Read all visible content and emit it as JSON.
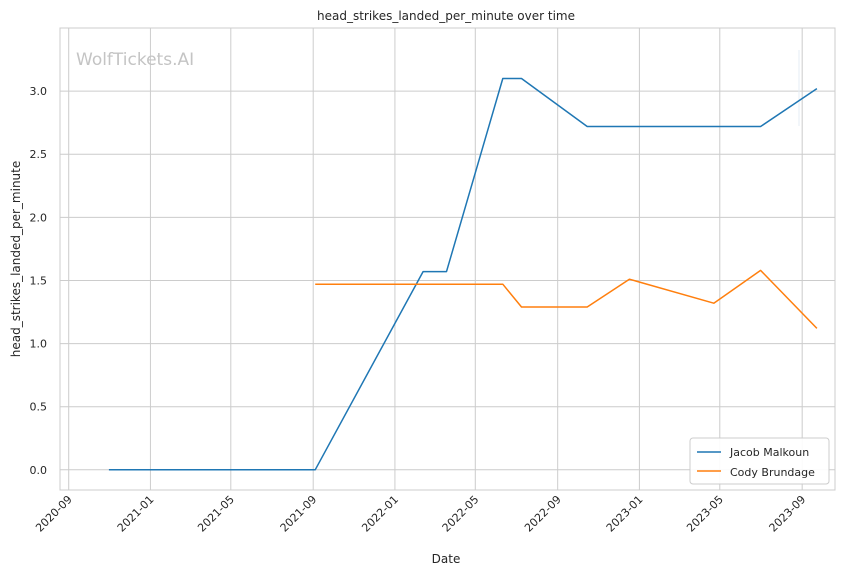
{
  "watermark": "WolfTickets.AI",
  "chart_data": {
    "type": "line",
    "title": "head_strikes_landed_per_minute over time",
    "xlabel": "Date",
    "ylabel": "head_strikes_landed_per_minute",
    "x_ticks": [
      "2020-09",
      "2021-01",
      "2021-05",
      "2021-09",
      "2022-01",
      "2022-05",
      "2022-09",
      "2023-01",
      "2023-05",
      "2023-09"
    ],
    "y_ticks": [
      "0.0",
      "0.5",
      "1.0",
      "1.5",
      "2.0",
      "2.5",
      "3.0"
    ],
    "xlim": [
      "2020-08-19",
      "2023-10-20"
    ],
    "ylim": [
      -0.16,
      3.5
    ],
    "grid": true,
    "legend_position": "lower-right",
    "series": [
      {
        "name": "Jacob Malkoun",
        "color": "#1f77b4",
        "points": [
          [
            "2020-10-31",
            0.0
          ],
          [
            "2021-09-04",
            0.0
          ],
          [
            "2022-02-12",
            1.57
          ],
          [
            "2022-03-19",
            1.57
          ],
          [
            "2022-06-11",
            3.1
          ],
          [
            "2022-07-09",
            3.1
          ],
          [
            "2022-10-15",
            2.72
          ],
          [
            "2023-07-01",
            2.72
          ],
          [
            "2023-09-23",
            3.02
          ]
        ]
      },
      {
        "name": "Cody Brundage",
        "color": "#ff7f0e",
        "points": [
          [
            "2021-09-04",
            1.47
          ],
          [
            "2022-06-11",
            1.47
          ],
          [
            "2022-07-09",
            1.29
          ],
          [
            "2022-10-15",
            1.29
          ],
          [
            "2022-12-17",
            1.51
          ],
          [
            "2023-04-22",
            1.32
          ],
          [
            "2023-07-01",
            1.58
          ],
          [
            "2023-09-23",
            1.12
          ]
        ]
      }
    ]
  }
}
